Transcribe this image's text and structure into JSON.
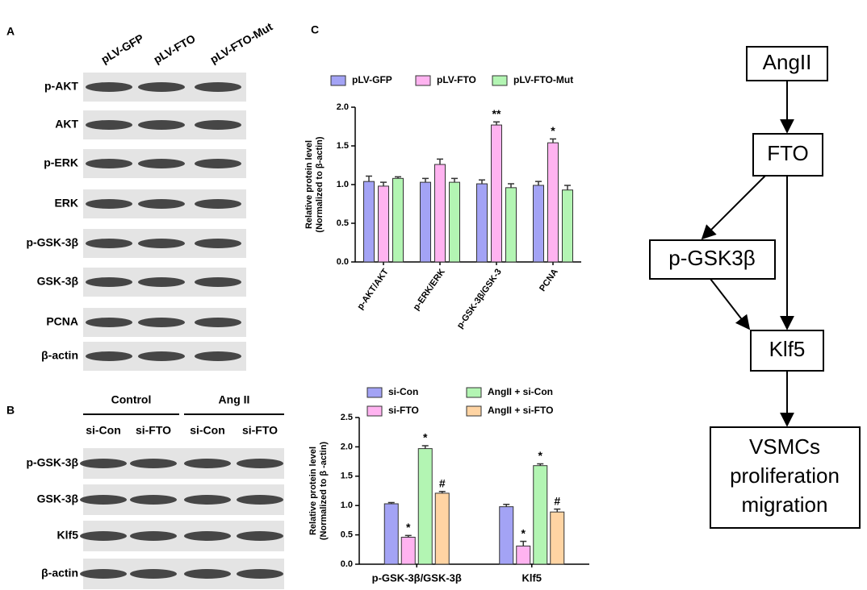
{
  "panel_a": {
    "label": "A",
    "lanes": [
      "pLV-GFP",
      "pLV-FTO",
      "pLV-FTO-Mut"
    ],
    "rows": [
      "p-AKT",
      "AKT",
      "p-ERK",
      "ERK",
      "p-GSK-3β",
      "GSK-3β",
      "PCNA",
      "β-actin"
    ]
  },
  "panel_b": {
    "label": "B",
    "groups": [
      "Control",
      "Ang II"
    ],
    "lanes": [
      "si-Con",
      "si-FTO",
      "si-Con",
      "si-FTO"
    ],
    "rows": [
      "p-GSK-3β",
      "GSK-3β",
      "Klf5",
      "β-actin"
    ]
  },
  "panel_c": {
    "label": "C"
  },
  "diagram": {
    "nodes": [
      {
        "lines": [
          "AngII"
        ]
      },
      {
        "lines": [
          "FTO"
        ]
      },
      {
        "lines": [
          "p-GSK3β"
        ]
      },
      {
        "lines": [
          "Klf5"
        ]
      },
      {
        "lines": [
          "VSMCs",
          "proliferation",
          "migration"
        ]
      }
    ]
  },
  "chart_data": [
    {
      "type": "bar",
      "ylabel": [
        "Relative protein level",
        "(Normalized to β-actin)"
      ],
      "categories": [
        "p-AKT/AKT",
        "p-ERK/ERK",
        "p-GSK-3β/GSK-3",
        "PCNA"
      ],
      "series": [
        {
          "name": "pLV-GFP",
          "color": "#a3a3f5",
          "values": [
            1.04,
            1.03,
            1.01,
            0.99
          ],
          "errors": [
            0.07,
            0.05,
            0.05,
            0.05
          ],
          "significance": [
            null,
            null,
            null,
            null
          ]
        },
        {
          "name": "pLV-FTO",
          "color": "#ffb3f0",
          "values": [
            0.98,
            1.26,
            1.77,
            1.54
          ],
          "errors": [
            0.05,
            0.07,
            0.04,
            0.05
          ],
          "significance": [
            null,
            null,
            "**",
            "*"
          ]
        },
        {
          "name": "pLV-FTO-Mut",
          "color": "#b3f5b3",
          "values": [
            1.08,
            1.03,
            0.96,
            0.93
          ],
          "errors": [
            0.02,
            0.05,
            0.05,
            0.06
          ],
          "significance": [
            null,
            null,
            null,
            null
          ]
        }
      ],
      "ylim": [
        0,
        2
      ],
      "yticks": [
        {
          "value": 0,
          "label": "0.0"
        },
        {
          "value": 0.5,
          "label": "0.5"
        },
        {
          "value": 1,
          "label": "1.0"
        },
        {
          "value": 1.5,
          "label": "1.5"
        },
        {
          "value": 2,
          "label": "2.0"
        }
      ],
      "legend": "top"
    },
    {
      "type": "bar",
      "ylabel": [
        "Relative protein level",
        "(Normalized to β -actin)"
      ],
      "categories": [
        "p-GSK-3β/GSK-3β",
        "Klf5"
      ],
      "series": [
        {
          "name": "si-Con",
          "color": "#a3a3f5",
          "values": [
            1.03,
            0.98
          ],
          "errors": [
            0.02,
            0.04
          ],
          "significance": [
            null,
            null
          ]
        },
        {
          "name": "si-FTO",
          "color": "#ffb3f0",
          "values": [
            0.46,
            0.31
          ],
          "errors": [
            0.03,
            0.08
          ],
          "significance": [
            "*",
            "*"
          ]
        },
        {
          "name": "AngII + si-Con",
          "color": "#b3f5b3",
          "values": [
            1.97,
            1.68
          ],
          "errors": [
            0.05,
            0.03
          ],
          "significance": [
            "*",
            "*"
          ]
        },
        {
          "name": "AngII + si-FTO",
          "color": "#ffd4a3",
          "values": [
            1.21,
            0.89
          ],
          "errors": [
            0.03,
            0.05
          ],
          "significance": [
            "#",
            "#"
          ]
        }
      ],
      "ylim": [
        0,
        2.5
      ],
      "yticks": [
        {
          "value": 0,
          "label": "0.0"
        },
        {
          "value": 0.5,
          "label": "0.5"
        },
        {
          "value": 1,
          "label": "1.0"
        },
        {
          "value": 1.5,
          "label": "1.5"
        },
        {
          "value": 2,
          "label": "2.0"
        },
        {
          "value": 2.5,
          "label": "2.5"
        }
      ],
      "legend": "top"
    }
  ]
}
